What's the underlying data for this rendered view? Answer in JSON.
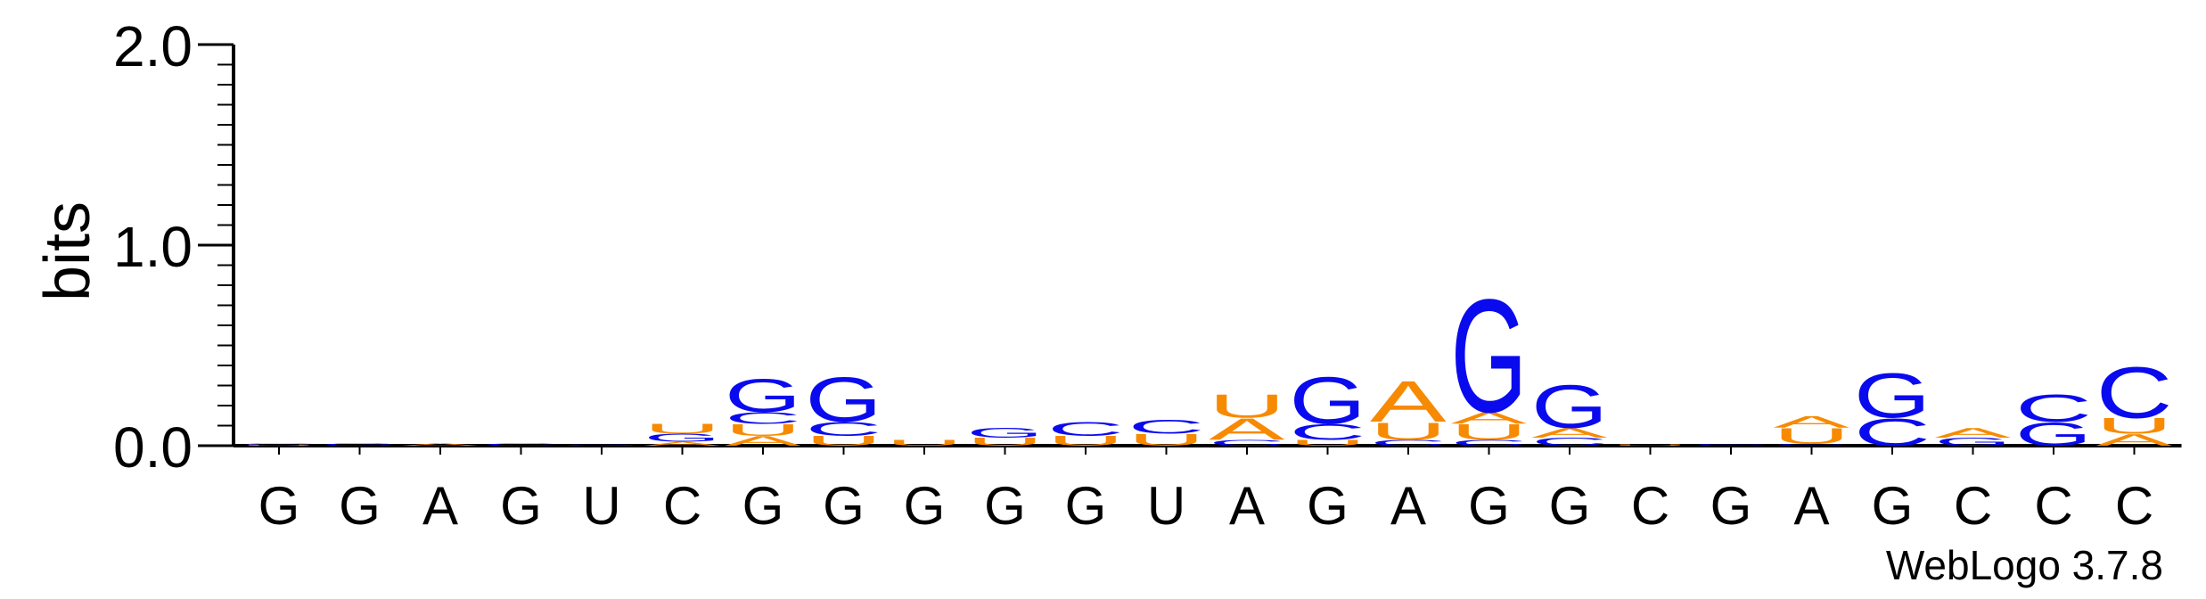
{
  "chart_data": {
    "type": "sequence-logo",
    "ylabel": "bits",
    "ylim": [
      0,
      2.0
    ],
    "yticks": [
      "0.0",
      "1.0",
      "2.0"
    ],
    "ytick_values": [
      0,
      1,
      2
    ],
    "credit": "WebLogo 3.7.8",
    "colors": {
      "G": "#0a0aee",
      "C": "#0a0aee",
      "A": "#f78a00",
      "U": "#f78a00"
    },
    "columns": [
      {
        "label": "G",
        "stack": [
          {
            "l": "U",
            "h": 0.005
          },
          {
            "l": "C",
            "h": 0.005
          }
        ]
      },
      {
        "label": "G",
        "stack": [
          {
            "l": "G",
            "h": 0.012
          }
        ]
      },
      {
        "label": "A",
        "stack": [
          {
            "l": "A",
            "h": 0.012
          }
        ]
      },
      {
        "label": "G",
        "stack": [
          {
            "l": "C",
            "h": 0.012
          }
        ]
      },
      {
        "label": "U",
        "stack": [
          {
            "l": "G",
            "h": 0.005
          }
        ]
      },
      {
        "label": "C",
        "stack": [
          {
            "l": "A",
            "h": 0.02
          },
          {
            "l": "G",
            "h": 0.04
          },
          {
            "l": "U",
            "h": 0.05
          }
        ]
      },
      {
        "label": "G",
        "stack": [
          {
            "l": "A",
            "h": 0.05
          },
          {
            "l": "U",
            "h": 0.06
          },
          {
            "l": "C",
            "h": 0.06
          },
          {
            "l": "G",
            "h": 0.17
          }
        ]
      },
      {
        "label": "G",
        "stack": [
          {
            "l": "U",
            "h": 0.05
          },
          {
            "l": "C",
            "h": 0.07
          },
          {
            "l": "G",
            "h": 0.23
          }
        ]
      },
      {
        "label": "G",
        "stack": [
          {
            "l": "U",
            "h": 0.03
          }
        ]
      },
      {
        "label": "G",
        "stack": [
          {
            "l": "U",
            "h": 0.04
          },
          {
            "l": "G",
            "h": 0.05
          }
        ]
      },
      {
        "label": "G",
        "stack": [
          {
            "l": "U",
            "h": 0.05
          },
          {
            "l": "C",
            "h": 0.07
          }
        ]
      },
      {
        "label": "U",
        "stack": [
          {
            "l": "U",
            "h": 0.06
          },
          {
            "l": "C",
            "h": 0.07
          }
        ]
      },
      {
        "label": "A",
        "stack": [
          {
            "l": "C",
            "h": 0.03
          },
          {
            "l": "A",
            "h": 0.11
          },
          {
            "l": "U",
            "h": 0.12
          }
        ]
      },
      {
        "label": "G",
        "stack": [
          {
            "l": "U",
            "h": 0.03
          },
          {
            "l": "C",
            "h": 0.08
          },
          {
            "l": "G",
            "h": 0.24
          }
        ]
      },
      {
        "label": "A",
        "stack": [
          {
            "l": "C",
            "h": 0.03
          },
          {
            "l": "U",
            "h": 0.09
          },
          {
            "l": "A",
            "h": 0.21
          }
        ]
      },
      {
        "label": "G",
        "stack": [
          {
            "l": "C",
            "h": 0.03
          },
          {
            "l": "U",
            "h": 0.08
          },
          {
            "l": "A",
            "h": 0.06
          },
          {
            "l": "G",
            "h": 0.58
          }
        ]
      },
      {
        "label": "G",
        "stack": [
          {
            "l": "C",
            "h": 0.04
          },
          {
            "l": "A",
            "h": 0.05
          },
          {
            "l": "G",
            "h": 0.22
          }
        ]
      },
      {
        "label": "C",
        "stack": [
          {
            "l": "U",
            "h": 0.005
          }
        ]
      },
      {
        "label": "G",
        "stack": [
          {
            "l": "C",
            "h": 0.008
          }
        ]
      },
      {
        "label": "A",
        "stack": [
          {
            "l": "C",
            "h": 0.01
          },
          {
            "l": "U",
            "h": 0.08
          },
          {
            "l": "A",
            "h": 0.06
          }
        ]
      },
      {
        "label": "G",
        "stack": [
          {
            "l": "C",
            "h": 0.14
          },
          {
            "l": "G",
            "h": 0.23
          }
        ]
      },
      {
        "label": "C",
        "stack": [
          {
            "l": "G",
            "h": 0.04
          },
          {
            "l": "A",
            "h": 0.05
          }
        ]
      },
      {
        "label": "C",
        "stack": [
          {
            "l": "G",
            "h": 0.12
          },
          {
            "l": "C",
            "h": 0.14
          }
        ]
      },
      {
        "label": "C",
        "stack": [
          {
            "l": "A",
            "h": 0.06
          },
          {
            "l": "U",
            "h": 0.08
          },
          {
            "l": "C",
            "h": 0.26
          }
        ]
      }
    ]
  }
}
